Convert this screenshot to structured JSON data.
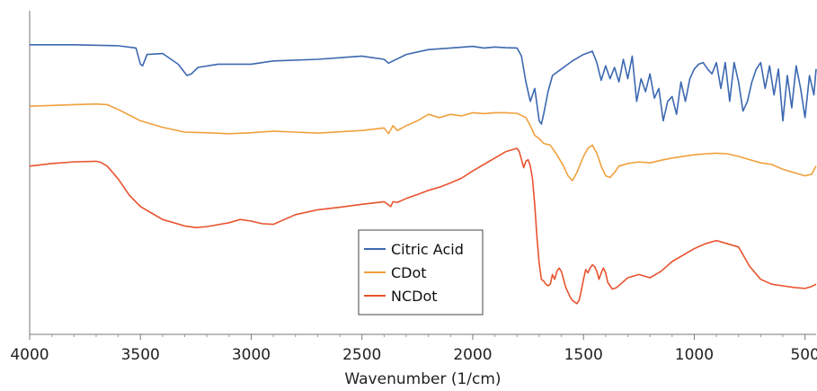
{
  "chart_data": {
    "type": "line",
    "title": "",
    "xlabel": "Wavenumber (1/cm)",
    "ylabel": "",
    "xlim": [
      4000,
      450
    ],
    "x_reversed": true,
    "x_ticks": [
      4000,
      3500,
      3000,
      2500,
      2000,
      1500,
      1000,
      500
    ],
    "ylim": [
      0,
      100
    ],
    "y_ticks_shown": false,
    "grid": false,
    "legend_placement": "bottom-center",
    "series": [
      {
        "name": "Citric Acid",
        "color": "#3c68b0",
        "x": [
          4000,
          3800,
          3600,
          3520,
          3500,
          3490,
          3470,
          3400,
          3330,
          3290,
          3270,
          3240,
          3150,
          3000,
          2900,
          2700,
          2500,
          2400,
          2380,
          2360,
          2300,
          2200,
          2100,
          2000,
          1950,
          1900,
          1850,
          1800,
          1780,
          1760,
          1740,
          1720,
          1700,
          1690,
          1680,
          1660,
          1640,
          1600,
          1550,
          1500,
          1460,
          1440,
          1420,
          1400,
          1380,
          1360,
          1340,
          1320,
          1300,
          1280,
          1260,
          1240,
          1220,
          1200,
          1180,
          1160,
          1140,
          1120,
          1100,
          1080,
          1060,
          1040,
          1020,
          1000,
          980,
          960,
          940,
          920,
          900,
          880,
          860,
          840,
          820,
          800,
          780,
          760,
          740,
          720,
          700,
          680,
          660,
          640,
          620,
          600,
          580,
          560,
          540,
          520,
          500,
          480,
          460,
          450
        ],
        "y": [
          89.5,
          89.5,
          89.2,
          88.5,
          83.5,
          83.0,
          86.5,
          86.8,
          83.5,
          80.0,
          80.5,
          82.5,
          83.5,
          83.5,
          84.5,
          85.0,
          86.0,
          85.0,
          83.8,
          84.5,
          86.5,
          88.0,
          88.5,
          89.0,
          88.5,
          88.8,
          88.6,
          88.5,
          86.0,
          78.0,
          72.0,
          76.0,
          66.0,
          65.0,
          68.0,
          75.0,
          80.0,
          82.0,
          84.5,
          86.5,
          87.5,
          84.0,
          78.5,
          83.0,
          79.0,
          82.5,
          78.0,
          85.0,
          79.0,
          86.0,
          72.0,
          79.0,
          75.0,
          80.5,
          73.0,
          76.0,
          66.0,
          72.0,
          73.5,
          68.0,
          78.0,
          72.0,
          79.0,
          82.0,
          83.5,
          84.0,
          82.0,
          80.5,
          84.0,
          76.0,
          84.0,
          72.0,
          84.0,
          78.0,
          69.0,
          72.0,
          78.0,
          82.0,
          84.0,
          76.0,
          83.0,
          74.0,
          82.0,
          66.0,
          80.0,
          70.0,
          83.0,
          76.0,
          67.0,
          80.0,
          74.0,
          82.0
        ]
      },
      {
        "name": "CDot",
        "color": "#f0a03c",
        "x": [
          4000,
          3800,
          3700,
          3650,
          3600,
          3500,
          3400,
          3300,
          3200,
          3100,
          3000,
          2900,
          2800,
          2700,
          2600,
          2500,
          2400,
          2380,
          2360,
          2340,
          2300,
          2250,
          2200,
          2150,
          2100,
          2050,
          2000,
          1950,
          1900,
          1850,
          1800,
          1760,
          1740,
          1720,
          1700,
          1680,
          1650,
          1620,
          1590,
          1570,
          1550,
          1530,
          1500,
          1480,
          1460,
          1440,
          1420,
          1400,
          1380,
          1360,
          1340,
          1300,
          1250,
          1200,
          1150,
          1100,
          1000,
          950,
          900,
          850,
          800,
          750,
          700,
          650,
          600,
          550,
          500,
          470,
          450
        ],
        "y": [
          70.5,
          71.0,
          71.2,
          71.0,
          69.5,
          66.0,
          64.0,
          62.5,
          62.3,
          62.0,
          62.3,
          62.8,
          62.5,
          62.2,
          62.6,
          63.0,
          63.8,
          62.0,
          64.5,
          63.0,
          64.5,
          66.0,
          68.0,
          67.0,
          68.0,
          67.5,
          68.5,
          68.2,
          68.5,
          68.5,
          68.3,
          67.0,
          64.5,
          61.5,
          60.5,
          59.0,
          58.5,
          55.5,
          52.0,
          49.0,
          47.5,
          50.0,
          55.0,
          57.5,
          58.5,
          56.0,
          52.0,
          49.0,
          48.5,
          50.0,
          52.0,
          52.8,
          53.3,
          53.0,
          53.8,
          54.5,
          55.5,
          55.8,
          56.0,
          55.8,
          55.0,
          54.0,
          53.0,
          52.5,
          51.0,
          50.0,
          49.0,
          49.5,
          52.0
        ]
      },
      {
        "name": "NCDot",
        "color": "#e8532e",
        "x": [
          4000,
          3900,
          3800,
          3700,
          3680,
          3650,
          3600,
          3550,
          3500,
          3450,
          3400,
          3300,
          3250,
          3200,
          3100,
          3050,
          3000,
          2950,
          2900,
          2850,
          2800,
          2700,
          2600,
          2500,
          2400,
          2370,
          2360,
          2340,
          2300,
          2250,
          2200,
          2150,
          2100,
          2050,
          2000,
          1950,
          1900,
          1850,
          1800,
          1790,
          1770,
          1760,
          1750,
          1740,
          1730,
          1720,
          1710,
          1700,
          1690,
          1680,
          1670,
          1660,
          1650,
          1640,
          1630,
          1620,
          1610,
          1600,
          1590,
          1580,
          1570,
          1560,
          1550,
          1540,
          1530,
          1520,
          1510,
          1500,
          1490,
          1480,
          1470,
          1460,
          1450,
          1440,
          1430,
          1420,
          1410,
          1400,
          1390,
          1380,
          1370,
          1360,
          1350,
          1300,
          1250,
          1200,
          1150,
          1100,
          1050,
          1000,
          950,
          900,
          850,
          800,
          750,
          700,
          650,
          600,
          550,
          500,
          470,
          450
        ],
        "y": [
          52.0,
          52.8,
          53.3,
          53.5,
          53.2,
          52.0,
          48.0,
          43.0,
          39.5,
          37.5,
          35.5,
          33.5,
          33.0,
          33.3,
          34.5,
          35.5,
          35.0,
          34.2,
          34.0,
          35.5,
          37.0,
          38.5,
          39.3,
          40.2,
          41.0,
          39.5,
          41.0,
          40.8,
          42.0,
          43.2,
          44.5,
          45.5,
          46.8,
          48.3,
          50.5,
          52.5,
          54.5,
          56.5,
          57.5,
          56.5,
          51.5,
          53.5,
          54.0,
          52.0,
          48.0,
          40.0,
          30.0,
          22.0,
          17.0,
          16.5,
          15.5,
          15.0,
          15.5,
          18.5,
          17.0,
          19.5,
          20.5,
          19.5,
          17.0,
          14.5,
          13.0,
          11.5,
          10.5,
          10.0,
          9.5,
          10.5,
          13.5,
          17.0,
          20.0,
          19.0,
          20.5,
          21.5,
          21.0,
          19.5,
          17.0,
          19.0,
          20.5,
          19.0,
          16.0,
          15.0,
          14.0,
          14.2,
          14.5,
          17.5,
          18.5,
          17.5,
          19.5,
          22.5,
          24.5,
          26.5,
          28.0,
          29.0,
          28.0,
          27.0,
          21.0,
          17.0,
          15.5,
          15.0,
          14.5,
          14.2,
          14.8,
          15.5
        ]
      }
    ]
  }
}
